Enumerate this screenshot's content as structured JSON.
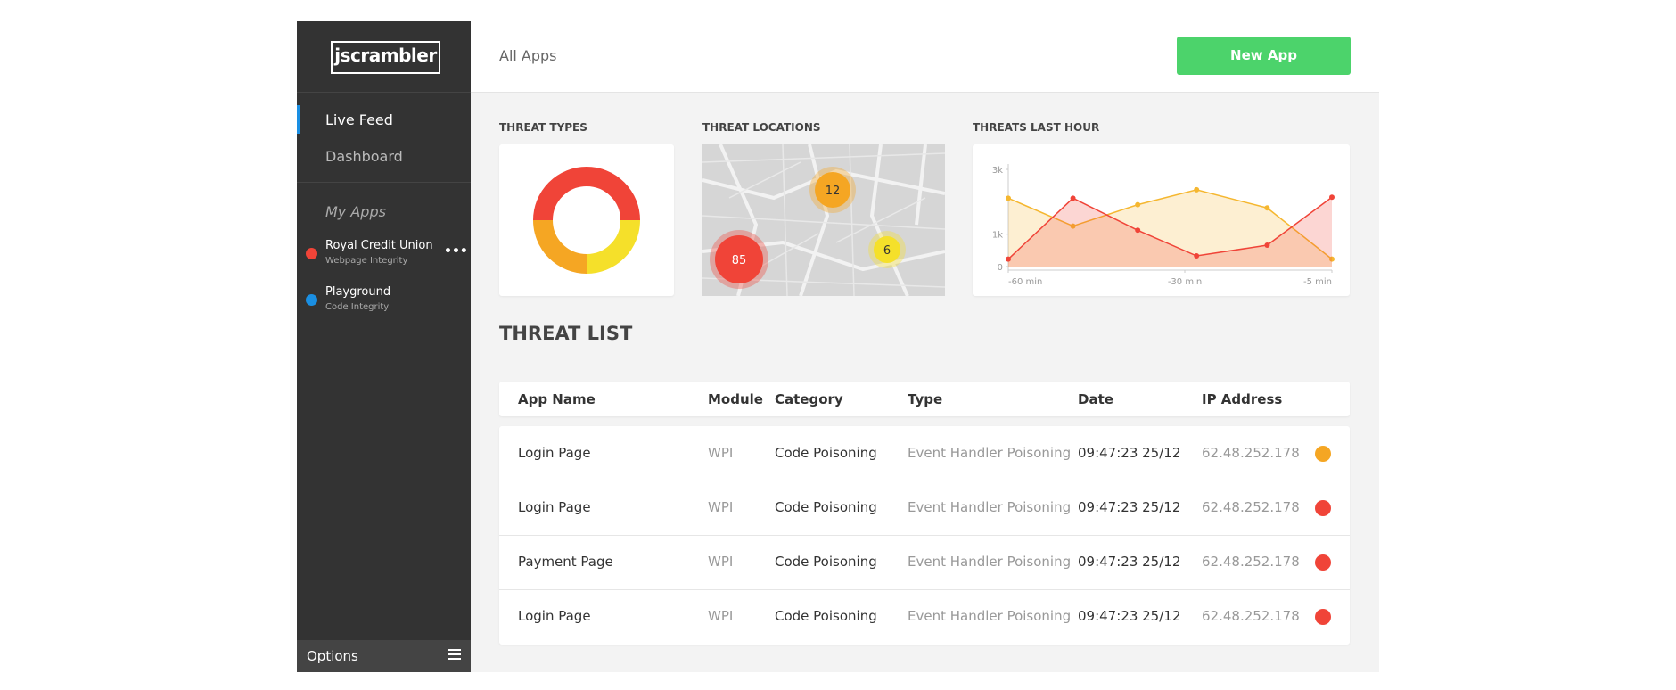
{
  "sidebar": {
    "logo": "jscrambler",
    "nav": [
      "Live Feed",
      "Dashboard"
    ],
    "apps_heading": "My Apps",
    "apps": [
      {
        "name": "Royal Credit Union",
        "subtitle": "Webpage Integrity",
        "color": "#f04438"
      },
      {
        "name": "Playground",
        "subtitle": "Code Integrity",
        "color": "#1a8fe3"
      }
    ],
    "footer": "Options"
  },
  "header": {
    "title": "All Apps",
    "button": "New App"
  },
  "widgets": {
    "threat_types": {
      "title": "THREAT TYPES",
      "type": "pie",
      "values": [
        50,
        25,
        25
      ],
      "colors": [
        "#f04438",
        "#f5e02a",
        "#f5a623"
      ]
    },
    "threat_locations": {
      "title": "THREAT LOCATIONS",
      "markers": [
        {
          "count": 12,
          "color": "#f5a623"
        },
        {
          "count": 85,
          "color": "#f04438"
        },
        {
          "count": 6,
          "color": "#f5e02a"
        }
      ]
    },
    "threats_last_hour": {
      "title": "THREATS LAST HOUR",
      "type": "line",
      "x": [
        -60,
        -49,
        -38,
        -28,
        -16,
        -5
      ],
      "xlim": [
        -60,
        -5
      ],
      "xticks": [
        {
          "value": -60,
          "label": "-60 min"
        },
        {
          "value": -30,
          "label": "-30 min"
        },
        {
          "value": -5,
          "label": "-5 min"
        }
      ],
      "ylim": [
        0,
        3000
      ],
      "yticks": [
        0,
        {
          "value": 1000,
          "label": "1k"
        },
        {
          "value": 3000,
          "label": "3k"
        }
      ],
      "series": [
        {
          "color": "#f5b730",
          "values": [
            2110,
            1250,
            1910,
            2370,
            1810,
            230
          ]
        },
        {
          "color": "#f04438",
          "values": [
            230,
            2110,
            1120,
            330,
            660,
            2140
          ]
        }
      ]
    }
  },
  "threat_list": {
    "title": "THREAT LIST",
    "columns": [
      "App Name",
      "Module",
      "Category",
      "Type",
      "Date",
      "IP Address"
    ],
    "rows": [
      {
        "cells": [
          "Login Page",
          "WPI",
          "Code Poisoning",
          "Event Handler Poisoning",
          "09:47:23 25/12",
          "62.48.252.178"
        ],
        "color": "#f5a623"
      },
      {
        "cells": [
          "Login Page",
          "WPI",
          "Code Poisoning",
          "Event Handler Poisoning",
          "09:47:23 25/12",
          "62.48.252.178"
        ],
        "color": "#f04438"
      },
      {
        "cells": [
          "Payment Page",
          "WPI",
          "Code Poisoning",
          "Event Handler Poisoning",
          "09:47:23 25/12",
          "62.48.252.178"
        ],
        "color": "#f04438"
      },
      {
        "cells": [
          "Login Page",
          "WPI",
          "Code Poisoning",
          "Event Handler Poisoning",
          "09:47:23 25/12",
          "62.48.252.178"
        ],
        "color": "#f04438"
      }
    ]
  }
}
